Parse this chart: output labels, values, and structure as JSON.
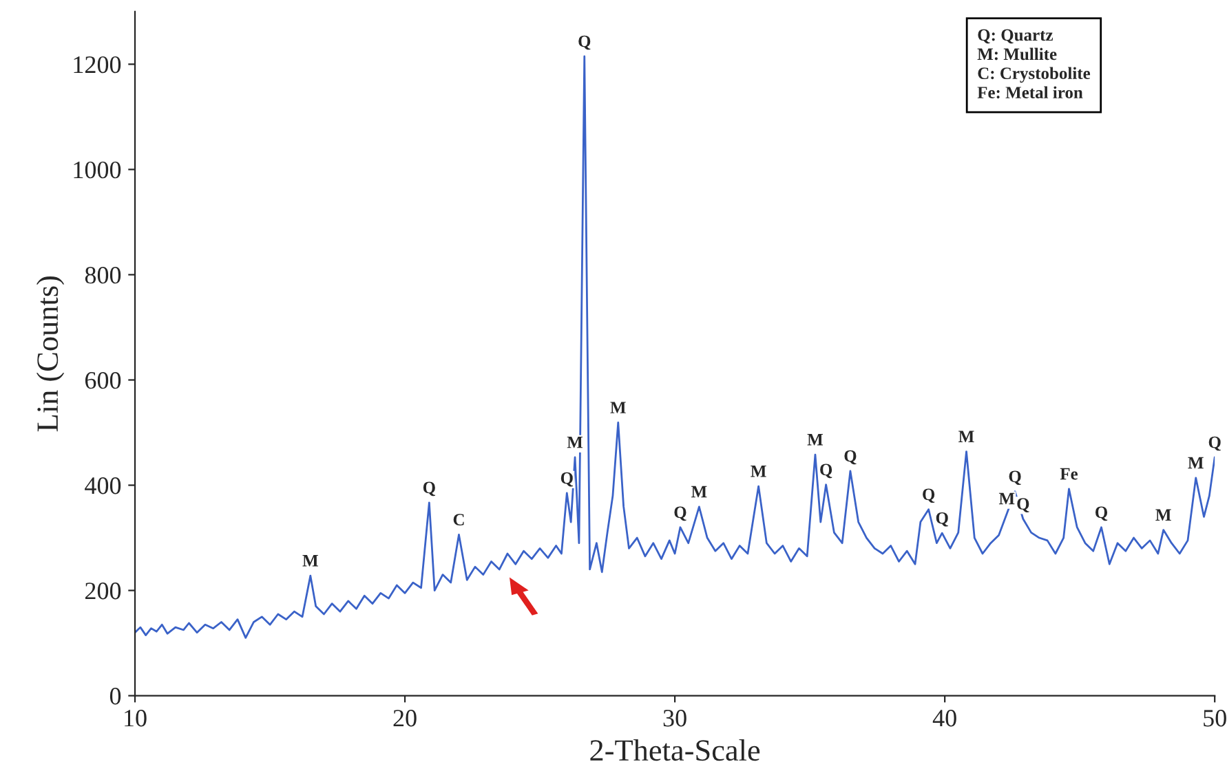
{
  "chart_data": {
    "type": "line",
    "xlabel": "2-Theta-Scale",
    "ylabel": "Lin (Counts)",
    "xlim": [
      10,
      50
    ],
    "xticks": [
      10,
      20,
      30,
      40,
      50
    ],
    "ylim": [
      0,
      1300
    ],
    "yticks": [
      0,
      200,
      400,
      600,
      800,
      1000,
      1200
    ],
    "grid": false,
    "legend": false,
    "series": [
      {
        "color": "#3a62c8",
        "x": [
          10.0,
          10.2,
          10.4,
          10.6,
          10.8,
          11.0,
          11.2,
          11.5,
          11.8,
          12.0,
          12.3,
          12.6,
          12.9,
          13.2,
          13.5,
          13.8,
          14.1,
          14.4,
          14.7,
          15.0,
          15.3,
          15.6,
          15.9,
          16.2,
          16.5,
          16.7,
          17.0,
          17.3,
          17.6,
          17.9,
          18.2,
          18.5,
          18.8,
          19.1,
          19.4,
          19.7,
          20.0,
          20.3,
          20.6,
          20.9,
          21.1,
          21.4,
          21.7,
          22.0,
          22.3,
          22.6,
          22.9,
          23.2,
          23.5,
          23.8,
          24.1,
          24.4,
          24.7,
          25.0,
          25.3,
          25.6,
          25.8,
          26.0,
          26.15,
          26.3,
          26.45,
          26.65,
          26.85,
          27.1,
          27.3,
          27.5,
          27.7,
          27.9,
          28.1,
          28.3,
          28.6,
          28.9,
          29.2,
          29.5,
          29.8,
          30.0,
          30.2,
          30.5,
          30.9,
          31.2,
          31.5,
          31.8,
          32.1,
          32.4,
          32.7,
          33.1,
          33.4,
          33.7,
          34.0,
          34.3,
          34.6,
          34.9,
          35.2,
          35.4,
          35.6,
          35.9,
          36.2,
          36.5,
          36.8,
          37.1,
          37.4,
          37.7,
          38.0,
          38.3,
          38.6,
          38.9,
          39.1,
          39.4,
          39.7,
          39.9,
          40.2,
          40.5,
          40.8,
          41.1,
          41.4,
          41.7,
          42.0,
          42.3,
          42.6,
          42.9,
          43.2,
          43.5,
          43.8,
          44.1,
          44.4,
          44.6,
          44.9,
          45.2,
          45.5,
          45.8,
          46.1,
          46.4,
          46.7,
          47.0,
          47.3,
          47.6,
          47.9,
          48.1,
          48.4,
          48.7,
          49.0,
          49.3,
          49.6,
          49.8,
          50.0
        ],
        "values": [
          120,
          130,
          115,
          128,
          122,
          135,
          118,
          130,
          125,
          138,
          120,
          135,
          128,
          140,
          125,
          145,
          110,
          140,
          150,
          135,
          155,
          145,
          160,
          150,
          228,
          170,
          155,
          175,
          160,
          180,
          165,
          190,
          175,
          195,
          185,
          210,
          195,
          215,
          205,
          367,
          200,
          230,
          215,
          306,
          220,
          245,
          230,
          255,
          240,
          270,
          250,
          275,
          260,
          280,
          262,
          285,
          270,
          385,
          330,
          453,
          290,
          1215,
          240,
          290,
          235,
          310,
          380,
          519,
          360,
          280,
          300,
          265,
          290,
          260,
          295,
          270,
          320,
          290,
          359,
          300,
          275,
          290,
          260,
          285,
          270,
          398,
          290,
          270,
          285,
          255,
          280,
          265,
          458,
          330,
          401,
          310,
          290,
          427,
          330,
          300,
          280,
          270,
          285,
          255,
          275,
          250,
          330,
          354,
          290,
          309,
          280,
          310,
          464,
          300,
          270,
          290,
          305,
          346,
          388,
          336,
          310,
          300,
          295,
          270,
          300,
          393,
          320,
          290,
          275,
          320,
          250,
          290,
          275,
          300,
          280,
          295,
          270,
          315,
          290,
          270,
          295,
          414,
          340,
          380,
          453
        ]
      }
    ],
    "annotations": [
      {
        "text": "M",
        "x": 16.5,
        "y": 228
      },
      {
        "text": "Q",
        "x": 20.9,
        "y": 367
      },
      {
        "text": "C",
        "x": 22.0,
        "y": 306
      },
      {
        "text": "Q",
        "x": 26.0,
        "y": 385
      },
      {
        "text": "M",
        "x": 26.3,
        "y": 453
      },
      {
        "text": "Q",
        "x": 26.65,
        "y": 1215
      },
      {
        "text": "M",
        "x": 27.9,
        "y": 519
      },
      {
        "text": "Q",
        "x": 30.2,
        "y": 320
      },
      {
        "text": "M",
        "x": 30.9,
        "y": 359
      },
      {
        "text": "M",
        "x": 33.1,
        "y": 398
      },
      {
        "text": "M",
        "x": 35.2,
        "y": 458
      },
      {
        "text": "Q",
        "x": 35.6,
        "y": 401
      },
      {
        "text": "Q",
        "x": 36.5,
        "y": 427
      },
      {
        "text": "Q",
        "x": 39.4,
        "y": 354
      },
      {
        "text": "Q",
        "x": 39.9,
        "y": 309
      },
      {
        "text": "M",
        "x": 40.8,
        "y": 464
      },
      {
        "text": "M",
        "x": 42.3,
        "y": 346
      },
      {
        "text": "Q",
        "x": 42.6,
        "y": 388
      },
      {
        "text": "Q",
        "x": 42.9,
        "y": 336
      },
      {
        "text": "Fe",
        "x": 44.6,
        "y": 393
      },
      {
        "text": "Q",
        "x": 45.8,
        "y": 320
      },
      {
        "text": "M",
        "x": 48.1,
        "y": 315
      },
      {
        "text": "M",
        "x": 49.3,
        "y": 414
      },
      {
        "text": "Q",
        "x": 50.0,
        "y": 453
      },
      "Q: Quartz",
      "M: Mullite",
      "C: Crystobolite",
      "Fe: Metal iron"
    ]
  }
}
